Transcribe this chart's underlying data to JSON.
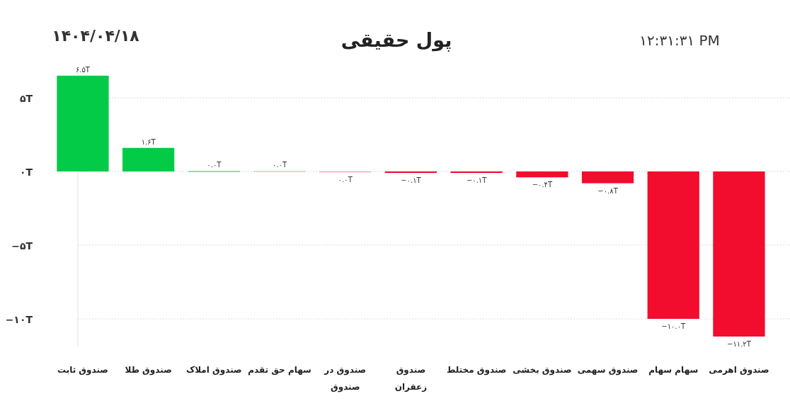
{
  "chart_data": {
    "type": "bar",
    "title": "پول حقیقی",
    "annotations": [
      "۱۴۰۴/۰۴/۱۸",
      "۱۲:۳۱:۳۱ PM"
    ],
    "categories": [
      "صندوق ثابت",
      "صندوق طلا",
      "صندوق املاک",
      "سهام حق تقدم",
      "صندوق در صندوق",
      "صندوق زعفران",
      "صندوق مختلط",
      "صندوق بخشی",
      "صندوق سهمی",
      "سهام سهام",
      "صندوق اهرمی"
    ],
    "values": [
      6.5,
      1.6,
      0.03,
      0.03,
      -0.03,
      -0.1,
      -0.1,
      -0.4,
      -0.8,
      -10.0,
      -11.2
    ],
    "value_labels": [
      "۶.۵T",
      "۱.۶T",
      "۰.۰T",
      "۰.۰T",
      "۰.۰T",
      "−۰.۱T",
      "−۰.۱T",
      "−۰.۴T",
      "−۰.۸T",
      "−۱۰.۰T",
      "−۱۱.۲T"
    ],
    "colors": [
      "#03cb47",
      "#03cb47",
      "#3fd577",
      "#8fe6ac",
      "#f3a1ab",
      "#f20c2d",
      "#f20c2d",
      "#f20c2d",
      "#f20c2d",
      "#f20c2d",
      "#f20c2d"
    ],
    "ylim": [
      -11.9,
      7.0
    ],
    "yticks": [
      {
        "value": 5,
        "label": "۵T"
      },
      {
        "value": 0,
        "label": "۰T"
      },
      {
        "value": -5,
        "label": "−۵T"
      },
      {
        "value": -10,
        "label": "−۱۰T"
      }
    ],
    "grid": "y"
  }
}
